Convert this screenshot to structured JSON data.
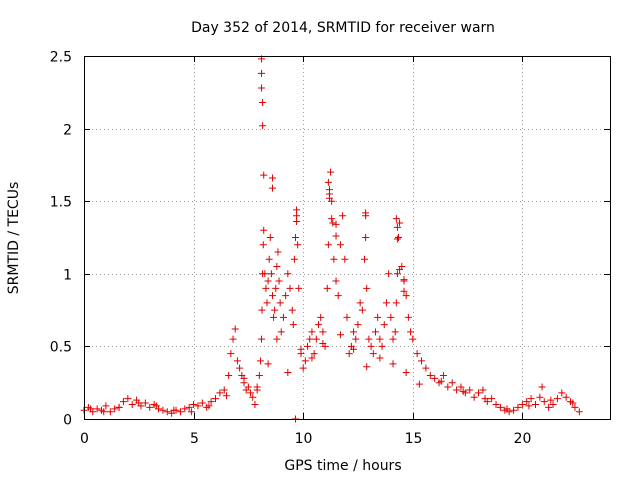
{
  "chart_data": {
    "type": "scatter",
    "title": "Day 352 of 2014, SRMTID for receiver warn",
    "xlabel": "GPS time / hours",
    "ylabel": "SRMTID / TECUs",
    "xlim": [
      0,
      24
    ],
    "ylim": [
      0,
      2.5
    ],
    "x_ticks": [
      0,
      5,
      10,
      15,
      20
    ],
    "x_tick_labels": [
      "0",
      "5",
      "10",
      "15",
      "20"
    ],
    "y_ticks": [
      0,
      0.5,
      1,
      1.5,
      2,
      2.5
    ],
    "y_tick_labels": [
      "0",
      "0.5",
      "1",
      "1.5",
      "2",
      "2.5"
    ],
    "grid": true,
    "marker": "+",
    "color": "#e00000",
    "series": [
      {
        "name": "SRMTID",
        "x": [
          0.0,
          0.2,
          0.4,
          0.6,
          0.8,
          1.0,
          1.2,
          1.4,
          1.6,
          1.8,
          2.0,
          2.2,
          2.4,
          2.6,
          2.8,
          3.0,
          3.2,
          3.4,
          3.6,
          3.8,
          4.0,
          4.2,
          4.4,
          4.6,
          4.8,
          5.0,
          5.2,
          5.4,
          5.6,
          5.8,
          6.0,
          6.2,
          6.4,
          6.6,
          6.7,
          6.8,
          6.9,
          7.0,
          7.1,
          7.2,
          7.3,
          7.4,
          7.5,
          7.6,
          7.7,
          7.8,
          7.9,
          8.0,
          8.05,
          8.1,
          8.12,
          8.15,
          8.18,
          8.2,
          8.25,
          8.3,
          8.35,
          8.4,
          8.45,
          8.5,
          8.55,
          8.6,
          8.65,
          8.7,
          8.75,
          8.8,
          8.85,
          8.9,
          8.95,
          9.0,
          9.1,
          9.2,
          9.3,
          9.4,
          9.5,
          9.55,
          9.6,
          9.65,
          9.7,
          9.75,
          9.8,
          9.9,
          10.0,
          10.1,
          10.2,
          10.3,
          10.4,
          10.5,
          10.6,
          10.7,
          10.8,
          10.9,
          11.0,
          11.1,
          11.15,
          11.2,
          11.25,
          11.3,
          11.35,
          11.4,
          11.5,
          11.6,
          11.7,
          11.8,
          11.9,
          12.0,
          12.1,
          12.2,
          12.3,
          12.4,
          12.5,
          12.6,
          12.7,
          12.8,
          12.85,
          12.9,
          13.0,
          13.1,
          13.2,
          13.3,
          13.4,
          13.5,
          13.6,
          13.7,
          13.8,
          13.9,
          14.0,
          14.1,
          14.2,
          14.25,
          14.3,
          14.35,
          14.4,
          14.5,
          14.6,
          14.7,
          14.8,
          14.9,
          15.0,
          15.2,
          15.4,
          15.6,
          15.8,
          16.0,
          16.2,
          16.4,
          16.6,
          16.8,
          17.0,
          17.2,
          17.4,
          17.6,
          17.8,
          18.0,
          18.2,
          18.4,
          18.6,
          18.8,
          19.0,
          19.2,
          19.4,
          19.6,
          19.8,
          20.0,
          20.2,
          20.4,
          20.6,
          20.8,
          20.9,
          21.0,
          21.2,
          21.4,
          21.6,
          21.8,
          22.0,
          22.2,
          22.4,
          22.6,
          8.1,
          8.1,
          8.1,
          8.15,
          8.15,
          8.2,
          8.6,
          8.6,
          9.7,
          9.7,
          11.15,
          11.2,
          11.2,
          11.3,
          11.5,
          11.5,
          12.85,
          12.85,
          14.25,
          14.3,
          14.3,
          14.4,
          14.6,
          14.6,
          9.65,
          0.3,
          0.9,
          1.6,
          2.5,
          3.3,
          4.1,
          4.9,
          5.7,
          6.5,
          7.3,
          7.9,
          8.4,
          8.8,
          9.3,
          9.9,
          10.4,
          10.9,
          11.7,
          12.3,
          12.9,
          13.5,
          14.1,
          14.7,
          15.3,
          16.3,
          17.3,
          18.3,
          19.3,
          20.3,
          21.3,
          22.3
        ],
        "y": [
          0.06,
          0.08,
          0.05,
          0.07,
          0.06,
          0.09,
          0.05,
          0.07,
          0.08,
          0.12,
          0.14,
          0.1,
          0.13,
          0.09,
          0.11,
          0.08,
          0.1,
          0.07,
          0.06,
          0.05,
          0.04,
          0.06,
          0.05,
          0.07,
          0.08,
          0.1,
          0.09,
          0.11,
          0.08,
          0.12,
          0.14,
          0.18,
          0.2,
          0.3,
          0.45,
          0.55,
          0.62,
          0.4,
          0.35,
          0.3,
          0.25,
          0.2,
          0.22,
          0.18,
          0.15,
          0.1,
          0.2,
          0.3,
          0.4,
          0.55,
          0.75,
          1.0,
          1.2,
          1.3,
          1.0,
          0.9,
          0.8,
          0.95,
          1.1,
          1.25,
          1.0,
          0.85,
          0.7,
          0.75,
          0.9,
          1.05,
          1.15,
          0.95,
          0.8,
          0.6,
          0.7,
          0.85,
          1.0,
          0.9,
          0.75,
          0.65,
          1.1,
          1.25,
          1.4,
          1.2,
          0.9,
          0.45,
          0.35,
          0.4,
          0.5,
          0.55,
          0.6,
          0.45,
          0.55,
          0.65,
          0.7,
          0.6,
          0.5,
          0.9,
          1.2,
          1.55,
          1.7,
          1.5,
          1.35,
          1.1,
          0.95,
          0.85,
          1.2,
          1.4,
          1.1,
          0.7,
          0.45,
          0.5,
          0.6,
          0.55,
          0.65,
          0.8,
          0.75,
          1.1,
          1.4,
          0.9,
          0.55,
          0.5,
          0.45,
          0.6,
          0.7,
          0.55,
          0.5,
          0.65,
          0.8,
          1.0,
          0.7,
          0.55,
          0.6,
          0.8,
          1.0,
          1.25,
          1.35,
          1.05,
          0.95,
          0.85,
          0.7,
          0.6,
          0.55,
          0.45,
          0.4,
          0.35,
          0.3,
          0.28,
          0.25,
          0.3,
          0.22,
          0.25,
          0.2,
          0.22,
          0.18,
          0.2,
          0.15,
          0.18,
          0.2,
          0.12,
          0.14,
          0.1,
          0.08,
          0.06,
          0.05,
          0.06,
          0.08,
          0.1,
          0.12,
          0.14,
          0.1,
          0.15,
          0.22,
          0.12,
          0.08,
          0.1,
          0.14,
          0.18,
          0.15,
          0.12,
          0.08,
          0.05,
          2.48,
          2.38,
          2.28,
          2.18,
          2.02,
          1.68,
          1.66,
          1.59,
          1.44,
          1.36,
          1.63,
          1.58,
          1.52,
          1.38,
          1.34,
          1.26,
          1.42,
          1.25,
          1.38,
          1.32,
          1.24,
          1.03,
          0.96,
          0.88,
          0.0,
          0.07,
          0.05,
          0.08,
          0.11,
          0.09,
          0.06,
          0.05,
          0.09,
          0.16,
          0.28,
          0.22,
          0.38,
          0.55,
          0.32,
          0.48,
          0.42,
          0.52,
          0.58,
          0.48,
          0.36,
          0.42,
          0.38,
          0.32,
          0.24,
          0.26,
          0.19,
          0.14,
          0.07,
          0.09,
          0.13,
          0.11
        ]
      }
    ]
  }
}
